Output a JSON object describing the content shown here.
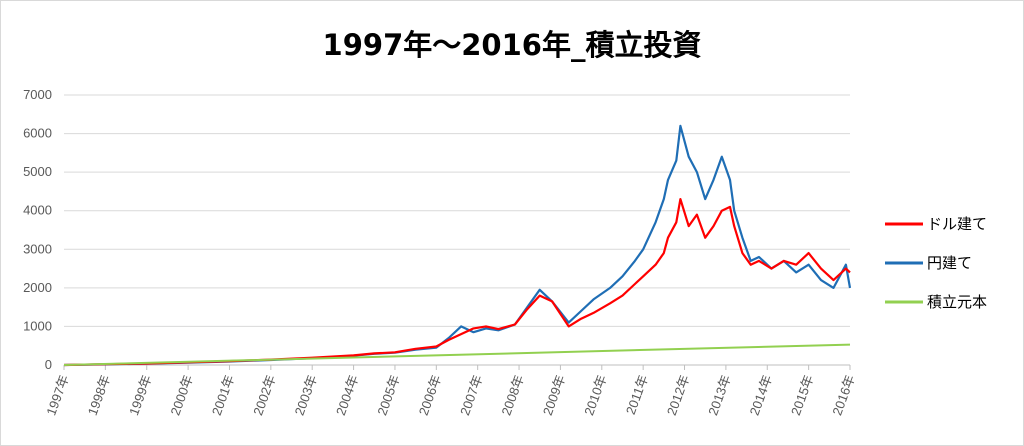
{
  "chart_data": {
    "type": "line",
    "title": "1997年～2016年_積立投資",
    "xlabel": "",
    "ylabel": "",
    "ylim": [
      0,
      7000
    ],
    "yticks": [
      0,
      1000,
      2000,
      3000,
      4000,
      5000,
      6000,
      7000
    ],
    "xlim": [
      1997,
      2016
    ],
    "xtick_labels": [
      "1997年",
      "1998年",
      "1999年",
      "2000年",
      "2001年",
      "2002年",
      "2003年",
      "2004年",
      "2005年",
      "2006年",
      "2007年",
      "2008年",
      "2009年",
      "2010年",
      "2011年",
      "2012年",
      "2013年",
      "2014年",
      "2015年",
      "2016年"
    ],
    "grid": true,
    "legend_position": "right",
    "series": [
      {
        "name": "ドル建て",
        "color": "#ff0000",
        "x": [
          1997.0,
          1998.0,
          1999.0,
          2000.0,
          2001.0,
          2002.0,
          2003.0,
          2004.0,
          2004.5,
          2005.0,
          2005.5,
          2006.0,
          2006.3,
          2006.6,
          2006.9,
          2007.2,
          2007.5,
          2007.9,
          2008.2,
          2008.5,
          2008.8,
          2009.2,
          2009.5,
          2009.8,
          2010.2,
          2010.5,
          2010.8,
          2011.0,
          2011.3,
          2011.5,
          2011.6,
          2011.8,
          2011.9,
          2012.1,
          2012.3,
          2012.5,
          2012.7,
          2012.9,
          2013.1,
          2013.2,
          2013.4,
          2013.6,
          2013.8,
          2014.1,
          2014.4,
          2014.7,
          2015.0,
          2015.3,
          2015.6,
          2015.9,
          2016.0
        ],
        "values": [
          0,
          20,
          40,
          70,
          100,
          140,
          190,
          250,
          300,
          330,
          420,
          480,
          650,
          800,
          950,
          1000,
          930,
          1050,
          1450,
          1800,
          1650,
          1000,
          1200,
          1350,
          1600,
          1800,
          2100,
          2300,
          2600,
          2900,
          3300,
          3700,
          4300,
          3600,
          3900,
          3300,
          3600,
          4000,
          4100,
          3600,
          2900,
          2600,
          2700,
          2500,
          2700,
          2600,
          2900,
          2500,
          2200,
          2500,
          2400
        ]
      },
      {
        "name": "円建て",
        "color": "#1f6eb5",
        "x": [
          1997.0,
          1998.0,
          1999.0,
          2000.0,
          2001.0,
          2002.0,
          2003.0,
          2004.0,
          2004.5,
          2005.0,
          2005.5,
          2006.0,
          2006.3,
          2006.6,
          2006.9,
          2007.2,
          2007.5,
          2007.9,
          2008.2,
          2008.5,
          2008.8,
          2009.2,
          2009.5,
          2009.8,
          2010.2,
          2010.5,
          2010.8,
          2011.0,
          2011.3,
          2011.5,
          2011.6,
          2011.8,
          2011.9,
          2012.1,
          2012.3,
          2012.5,
          2012.7,
          2012.9,
          2013.1,
          2013.2,
          2013.4,
          2013.6,
          2013.8,
          2014.1,
          2014.4,
          2014.7,
          2015.0,
          2015.3,
          2015.6,
          2015.9,
          2016.0
        ],
        "values": [
          0,
          15,
          35,
          60,
          90,
          130,
          180,
          240,
          290,
          320,
          400,
          450,
          700,
          1000,
          850,
          950,
          900,
          1050,
          1500,
          1950,
          1650,
          1100,
          1400,
          1700,
          2000,
          2300,
          2700,
          3000,
          3700,
          4300,
          4800,
          5300,
          6200,
          5400,
          5000,
          4300,
          4800,
          5400,
          4800,
          4000,
          3300,
          2700,
          2800,
          2500,
          2700,
          2400,
          2600,
          2200,
          2000,
          2600,
          2000
        ]
      },
      {
        "name": "積立元本",
        "color": "#92d050",
        "x": [
          1997.0,
          2016.0
        ],
        "values": [
          0,
          530
        ]
      }
    ]
  }
}
